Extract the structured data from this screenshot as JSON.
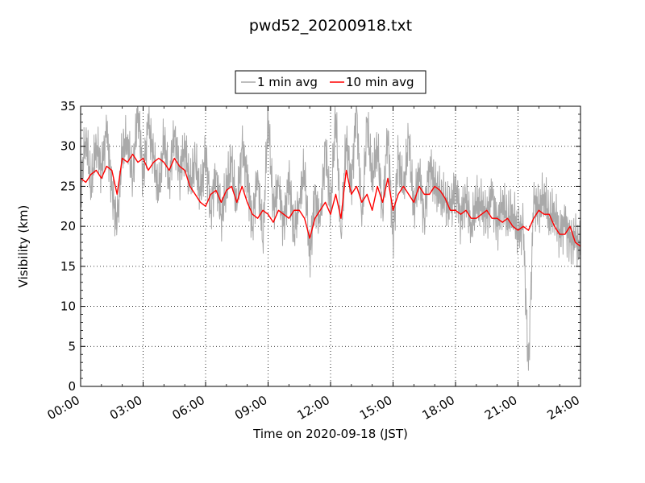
{
  "chart_data": {
    "type": "line",
    "title": "pwd52_20200918.txt",
    "xlabel": "Time on 2020-09-18 (JST)",
    "ylabel": "Visibility (km)",
    "xlim": [
      "00:00",
      "24:00"
    ],
    "ylim": [
      0,
      35
    ],
    "x_ticks": [
      "00:00",
      "03:00",
      "06:00",
      "09:00",
      "12:00",
      "15:00",
      "18:00",
      "21:00",
      "24:00"
    ],
    "y_ticks": [
      "0",
      "5",
      "10",
      "15",
      "20",
      "25",
      "30",
      "35"
    ],
    "grid": true,
    "legend_position": "top-center",
    "series": [
      {
        "name": "1 min avg",
        "color": "#a9a9a9",
        "x": [
          "00:00",
          "00:15",
          "00:30",
          "00:45",
          "01:00",
          "01:15",
          "01:30",
          "01:45",
          "02:00",
          "02:15",
          "02:30",
          "02:45",
          "03:00",
          "03:15",
          "03:30",
          "03:45",
          "04:00",
          "04:15",
          "04:30",
          "04:45",
          "05:00",
          "05:15",
          "05:30",
          "05:45",
          "06:00",
          "06:15",
          "06:30",
          "06:45",
          "07:00",
          "07:15",
          "07:30",
          "07:45",
          "08:00",
          "08:15",
          "08:30",
          "08:45",
          "09:00",
          "09:15",
          "09:30",
          "09:45",
          "10:00",
          "10:15",
          "10:30",
          "10:45",
          "11:00",
          "11:15",
          "11:30",
          "11:45",
          "12:00",
          "12:15",
          "12:30",
          "12:45",
          "13:00",
          "13:15",
          "13:30",
          "13:45",
          "14:00",
          "14:15",
          "14:30",
          "14:45",
          "15:00",
          "15:15",
          "15:30",
          "15:45",
          "16:00",
          "16:15",
          "16:30",
          "16:45",
          "17:00",
          "17:15",
          "17:30",
          "17:45",
          "18:00",
          "18:15",
          "18:30",
          "18:45",
          "19:00",
          "19:15",
          "19:30",
          "19:45",
          "20:00",
          "20:15",
          "20:30",
          "20:45",
          "21:00",
          "21:15",
          "21:30",
          "21:45",
          "22:00",
          "22:15",
          "22:30",
          "22:45",
          "23:00",
          "23:15",
          "23:30",
          "23:45",
          "24:00"
        ],
        "values": [
          24.5,
          31.5,
          25,
          30.5,
          27,
          32,
          24.5,
          20,
          29.5,
          31,
          26,
          35,
          26,
          33,
          28.5,
          24,
          31,
          25.5,
          32,
          26.5,
          30,
          25,
          28,
          24,
          29,
          22,
          27,
          21,
          25,
          28,
          22,
          30,
          26,
          20,
          27,
          18,
          34,
          22,
          25,
          20,
          26,
          19,
          23.5,
          27,
          16,
          24,
          20,
          30,
          22,
          34,
          19,
          31,
          25,
          35,
          20,
          33,
          26,
          30,
          22,
          32,
          18,
          29,
          24,
          31,
          22,
          27,
          21,
          28,
          25,
          24,
          23,
          22,
          25,
          21,
          24,
          20,
          23,
          22.5,
          21,
          24,
          20,
          23,
          21,
          22,
          19,
          20,
          2,
          23,
          22,
          24,
          21,
          22,
          19,
          20.5,
          18,
          18.5,
          17
        ],
        "style": "jagged"
      },
      {
        "name": "10 min avg",
        "color": "#ff0000",
        "x": [
          "00:00",
          "00:15",
          "00:30",
          "00:45",
          "01:00",
          "01:15",
          "01:30",
          "01:45",
          "02:00",
          "02:15",
          "02:30",
          "02:45",
          "03:00",
          "03:15",
          "03:30",
          "03:45",
          "04:00",
          "04:15",
          "04:30",
          "04:45",
          "05:00",
          "05:15",
          "05:30",
          "05:45",
          "06:00",
          "06:15",
          "06:30",
          "06:45",
          "07:00",
          "07:15",
          "07:30",
          "07:45",
          "08:00",
          "08:15",
          "08:30",
          "08:45",
          "09:00",
          "09:15",
          "09:30",
          "09:45",
          "10:00",
          "10:15",
          "10:30",
          "10:45",
          "11:00",
          "11:15",
          "11:30",
          "11:45",
          "12:00",
          "12:15",
          "12:30",
          "12:45",
          "13:00",
          "13:15",
          "13:30",
          "13:45",
          "14:00",
          "14:15",
          "14:30",
          "14:45",
          "15:00",
          "15:15",
          "15:30",
          "15:45",
          "16:00",
          "16:15",
          "16:30",
          "16:45",
          "17:00",
          "17:15",
          "17:30",
          "17:45",
          "18:00",
          "18:15",
          "18:30",
          "18:45",
          "19:00",
          "19:15",
          "19:30",
          "19:45",
          "20:00",
          "20:15",
          "20:30",
          "20:45",
          "21:00",
          "21:15",
          "21:30",
          "21:45",
          "22:00",
          "22:15",
          "22:30",
          "22:45",
          "23:00",
          "23:15",
          "23:30",
          "23:45",
          "24:00"
        ],
        "values": [
          26,
          25.5,
          26.5,
          27,
          26,
          27.5,
          27,
          24,
          28.5,
          28,
          29,
          28,
          28.5,
          27,
          28,
          28.5,
          28,
          27,
          28.5,
          27.5,
          27,
          25,
          24,
          23,
          22.5,
          24,
          24.5,
          23,
          24.5,
          25,
          23,
          25,
          23,
          21.5,
          21,
          22,
          21.5,
          20.5,
          22,
          21.5,
          21,
          22,
          22,
          21,
          18.5,
          21,
          22,
          23,
          21.5,
          24,
          21,
          27,
          24,
          25,
          23,
          24,
          22,
          25,
          23,
          26,
          22,
          24,
          25,
          24,
          23,
          25,
          24,
          24,
          25,
          24.5,
          23.5,
          22,
          22,
          21.5,
          22,
          21,
          21,
          21.5,
          22,
          21,
          21,
          20.5,
          21,
          20,
          19.5,
          20,
          19.5,
          21,
          22,
          21.5,
          21.5,
          20,
          19,
          19,
          20,
          18,
          17.5
        ],
        "style": "smooth"
      }
    ]
  }
}
